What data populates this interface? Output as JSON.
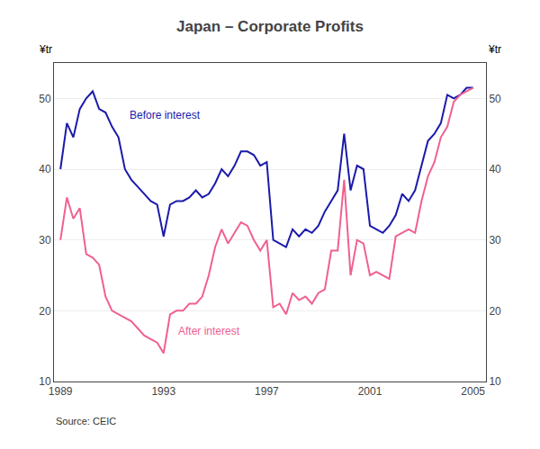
{
  "chart_data": {
    "type": "line",
    "title": "Japan – Corporate Profits",
    "ylabel": "¥tr",
    "y2label": "¥tr",
    "source": "Source: CEIC",
    "xlim": [
      1988.75,
      2005.5
    ],
    "xticks": [
      1989,
      1993,
      1997,
      2001,
      2005
    ],
    "ylim": [
      10,
      55
    ],
    "yticks": [
      10,
      20,
      30,
      40,
      50
    ],
    "y2lim": [
      10,
      55
    ],
    "y2ticks": [
      10,
      20,
      30,
      40,
      50
    ],
    "grid": true,
    "x": [
      1989.0,
      1989.25,
      1989.5,
      1989.75,
      1990.0,
      1990.25,
      1990.5,
      1990.75,
      1991.0,
      1991.25,
      1991.5,
      1991.75,
      1992.0,
      1992.25,
      1992.5,
      1992.75,
      1993.0,
      1993.25,
      1993.5,
      1993.75,
      1994.0,
      1994.25,
      1994.5,
      1994.75,
      1995.0,
      1995.25,
      1995.5,
      1995.75,
      1996.0,
      1996.25,
      1996.5,
      1996.75,
      1997.0,
      1997.25,
      1997.5,
      1997.75,
      1998.0,
      1998.25,
      1998.5,
      1998.75,
      1999.0,
      1999.25,
      1999.5,
      1999.75,
      2000.0,
      2000.25,
      2000.5,
      2000.75,
      2001.0,
      2001.25,
      2001.5,
      2001.75,
      2002.0,
      2002.25,
      2002.5,
      2002.75,
      2003.0,
      2003.25,
      2003.5,
      2003.75,
      2004.0,
      2004.25,
      2004.5,
      2004.75,
      2005.0
    ],
    "series": [
      {
        "color": "#1a1aaa",
        "values": [
          40.0,
          46.5,
          44.5,
          48.5,
          50.0,
          51.0,
          48.5,
          48.0,
          46.0,
          44.5,
          40.0,
          38.5,
          37.5,
          36.5,
          35.5,
          35.0,
          30.5,
          35.0,
          35.5,
          35.5,
          36.0,
          37.0,
          36.0,
          36.5,
          38.0,
          40.0,
          39.0,
          40.5,
          42.5,
          42.5,
          42.0,
          40.5,
          41.0,
          30.0,
          29.5,
          29.0,
          31.5,
          30.5,
          31.5,
          31.0,
          32.0,
          34.0,
          35.5,
          37.0,
          45.0,
          37.0,
          40.5,
          40.0,
          32.0,
          31.5,
          31.0,
          32.0,
          33.5,
          36.5,
          35.5,
          37.0,
          40.5,
          44.0,
          45.0,
          46.5,
          50.5,
          50.0,
          50.5,
          51.5,
          51.5
        ]
      },
      {
        "color": "#f06090",
        "values": [
          30.0,
          36.0,
          33.0,
          34.5,
          28.0,
          27.5,
          26.5,
          22.0,
          20.0,
          19.5,
          19.0,
          18.5,
          17.5,
          16.5,
          16.0,
          15.5,
          14.0,
          19.5,
          20.0,
          20.0,
          21.0,
          21.0,
          22.0,
          25.0,
          29.0,
          31.5,
          29.5,
          31.0,
          32.5,
          32.0,
          30.0,
          28.5,
          30.0,
          20.5,
          21.0,
          19.5,
          22.5,
          21.5,
          22.0,
          21.0,
          22.5,
          23.0,
          28.5,
          28.5,
          38.5,
          25.0,
          30.0,
          29.5,
          25.0,
          25.5,
          25.0,
          24.5,
          30.5,
          31.0,
          31.5,
          31.0,
          35.5,
          39.0,
          41.0,
          44.5,
          46.0,
          49.5,
          50.5,
          51.0,
          51.5
        ]
      }
    ],
    "annotations": [
      {
        "text": "Before interest",
        "x": 1991.6,
        "y": 46.5,
        "color": "#1a1aaa"
      },
      {
        "text": "After interest",
        "x": 1993.5,
        "y": 16.0,
        "color": "#f06090"
      }
    ]
  }
}
